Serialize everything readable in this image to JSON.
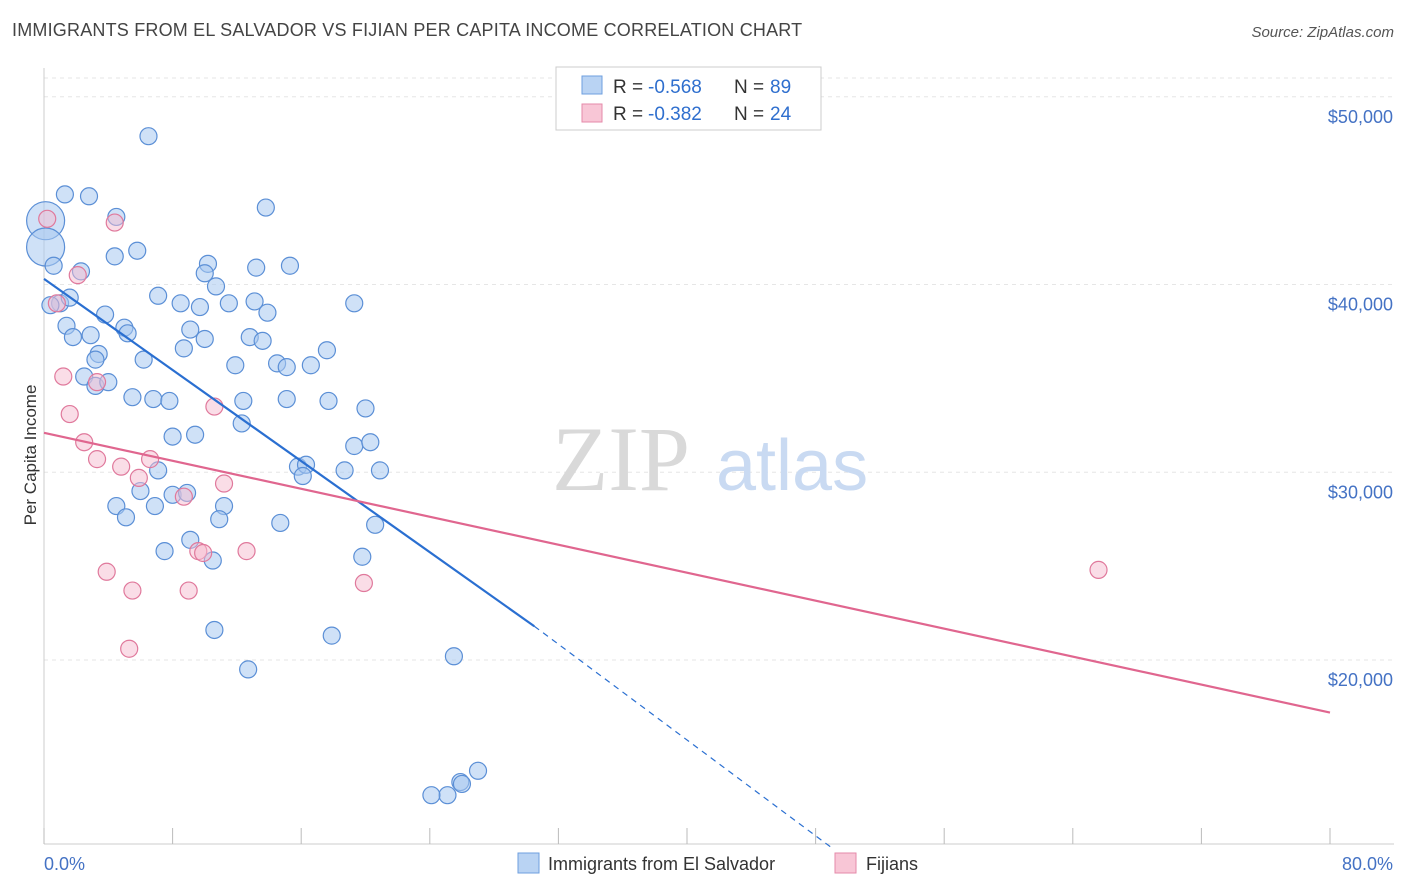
{
  "title": "IMMIGRANTS FROM EL SALVADOR VS FIJIAN PER CAPITA INCOME CORRELATION CHART",
  "source": "Source: ZipAtlas.com",
  "watermark": {
    "zip": "ZIP",
    "atlas": "atlas"
  },
  "chart_data": {
    "type": "scatter",
    "ylabel": "Per Capita Income",
    "xlim": [
      0,
      80
    ],
    "ylim": [
      10000,
      51500
    ],
    "x_tick_labels": [
      "0.0%",
      "80.0%"
    ],
    "y_ticks": [
      20000,
      30000,
      40000,
      50000
    ],
    "y_tick_labels": [
      "$20,000",
      "$30,000",
      "$40,000",
      "$50,000"
    ],
    "grid": true,
    "legend": {
      "position": "top-center",
      "entries": [
        {
          "r_label": "R = ",
          "r_value": "-0.568",
          "n_label": "N = ",
          "n_value": "89"
        },
        {
          "r_label": "R = ",
          "r_value": "-0.382",
          "n_label": "N = ",
          "n_value": "24"
        }
      ]
    },
    "series": [
      {
        "name": "Immigrants from El Salvador",
        "color": "#a8c8f0",
        "stroke": "#5b8fd6",
        "trend_color": "#2a6fd1",
        "trend": {
          "x0": 0,
          "y0": 40300,
          "x1": 30.5,
          "y1": 21800,
          "dash_x1": 49,
          "dash_y1": 10000
        },
        "points": [
          {
            "x": 0.1,
            "y": 43400,
            "big": true
          },
          {
            "x": 0.1,
            "y": 42000,
            "big": true
          },
          {
            "x": 0.6,
            "y": 41000
          },
          {
            "x": 1.3,
            "y": 44800
          },
          {
            "x": 2.8,
            "y": 44700
          },
          {
            "x": 6.5,
            "y": 47900
          },
          {
            "x": 4.5,
            "y": 43600
          },
          {
            "x": 13.8,
            "y": 44100
          },
          {
            "x": 2.3,
            "y": 40700
          },
          {
            "x": 4.4,
            "y": 41500
          },
          {
            "x": 5.8,
            "y": 41800
          },
          {
            "x": 10.2,
            "y": 41100
          },
          {
            "x": 10.0,
            "y": 40600
          },
          {
            "x": 13.2,
            "y": 40900
          },
          {
            "x": 15.3,
            "y": 41000
          },
          {
            "x": 10.7,
            "y": 39900
          },
          {
            "x": 1.0,
            "y": 39000
          },
          {
            "x": 1.6,
            "y": 39300
          },
          {
            "x": 7.1,
            "y": 39400
          },
          {
            "x": 8.5,
            "y": 39000
          },
          {
            "x": 9.7,
            "y": 38800
          },
          {
            "x": 11.5,
            "y": 39000
          },
          {
            "x": 13.1,
            "y": 39100
          },
          {
            "x": 19.3,
            "y": 39000
          },
          {
            "x": 3.8,
            "y": 38400
          },
          {
            "x": 13.9,
            "y": 38500
          },
          {
            "x": 1.4,
            "y": 37800
          },
          {
            "x": 1.8,
            "y": 37200
          },
          {
            "x": 2.9,
            "y": 37300
          },
          {
            "x": 5.0,
            "y": 37700
          },
          {
            "x": 5.2,
            "y": 37400
          },
          {
            "x": 9.1,
            "y": 37600
          },
          {
            "x": 10.0,
            "y": 37100
          },
          {
            "x": 12.8,
            "y": 37200
          },
          {
            "x": 13.6,
            "y": 37000
          },
          {
            "x": 8.7,
            "y": 36600
          },
          {
            "x": 3.4,
            "y": 36300
          },
          {
            "x": 3.2,
            "y": 36000
          },
          {
            "x": 6.2,
            "y": 36000
          },
          {
            "x": 11.9,
            "y": 35700
          },
          {
            "x": 14.5,
            "y": 35800
          },
          {
            "x": 15.1,
            "y": 35600
          },
          {
            "x": 16.6,
            "y": 35700
          },
          {
            "x": 17.6,
            "y": 36500
          },
          {
            "x": 2.5,
            "y": 35100
          },
          {
            "x": 3.2,
            "y": 34600
          },
          {
            "x": 4.0,
            "y": 34800
          },
          {
            "x": 5.5,
            "y": 34000
          },
          {
            "x": 6.8,
            "y": 33900
          },
          {
            "x": 7.8,
            "y": 33800
          },
          {
            "x": 12.4,
            "y": 33800
          },
          {
            "x": 15.1,
            "y": 33900
          },
          {
            "x": 17.7,
            "y": 33800
          },
          {
            "x": 20.0,
            "y": 33400
          },
          {
            "x": 12.3,
            "y": 32600
          },
          {
            "x": 8.0,
            "y": 31900
          },
          {
            "x": 9.4,
            "y": 32000
          },
          {
            "x": 19.3,
            "y": 31400
          },
          {
            "x": 20.3,
            "y": 31600
          },
          {
            "x": 7.1,
            "y": 30100
          },
          {
            "x": 15.8,
            "y": 30300
          },
          {
            "x": 16.3,
            "y": 30400
          },
          {
            "x": 16.1,
            "y": 29800
          },
          {
            "x": 18.7,
            "y": 30100
          },
          {
            "x": 20.9,
            "y": 30100
          },
          {
            "x": 6.0,
            "y": 29000
          },
          {
            "x": 8.0,
            "y": 28800
          },
          {
            "x": 8.9,
            "y": 28900
          },
          {
            "x": 4.5,
            "y": 28200
          },
          {
            "x": 6.9,
            "y": 28200
          },
          {
            "x": 11.2,
            "y": 28200
          },
          {
            "x": 5.1,
            "y": 27600
          },
          {
            "x": 10.9,
            "y": 27500
          },
          {
            "x": 14.7,
            "y": 27300
          },
          {
            "x": 20.6,
            "y": 27200
          },
          {
            "x": 9.1,
            "y": 26400
          },
          {
            "x": 7.5,
            "y": 25800
          },
          {
            "x": 10.5,
            "y": 25300
          },
          {
            "x": 19.8,
            "y": 25500
          },
          {
            "x": 10.6,
            "y": 21600
          },
          {
            "x": 17.9,
            "y": 21300
          },
          {
            "x": 12.7,
            "y": 19500
          },
          {
            "x": 25.5,
            "y": 20200
          },
          {
            "x": 25.9,
            "y": 13500
          },
          {
            "x": 25.1,
            "y": 12800
          },
          {
            "x": 26.0,
            "y": 13400
          },
          {
            "x": 27.0,
            "y": 14100
          },
          {
            "x": 24.1,
            "y": 12800
          },
          {
            "x": 0.4,
            "y": 38900
          }
        ]
      },
      {
        "name": "Fijians",
        "color": "#f6bcd0",
        "stroke": "#e0799c",
        "trend_color": "#e0668f",
        "trend": {
          "x0": 0,
          "y0": 32100,
          "x1": 80,
          "y1": 17200
        },
        "points": [
          {
            "x": 0.2,
            "y": 43500
          },
          {
            "x": 4.4,
            "y": 43300
          },
          {
            "x": 2.1,
            "y": 40500
          },
          {
            "x": 0.8,
            "y": 39000
          },
          {
            "x": 1.2,
            "y": 35100
          },
          {
            "x": 3.3,
            "y": 34800
          },
          {
            "x": 1.6,
            "y": 33100
          },
          {
            "x": 10.6,
            "y": 33500
          },
          {
            "x": 2.5,
            "y": 31600
          },
          {
            "x": 3.3,
            "y": 30700
          },
          {
            "x": 6.6,
            "y": 30700
          },
          {
            "x": 4.8,
            "y": 30300
          },
          {
            "x": 5.9,
            "y": 29700
          },
          {
            "x": 11.2,
            "y": 29400
          },
          {
            "x": 8.7,
            "y": 28700
          },
          {
            "x": 9.6,
            "y": 25800
          },
          {
            "x": 9.9,
            "y": 25700
          },
          {
            "x": 12.6,
            "y": 25800
          },
          {
            "x": 3.9,
            "y": 24700
          },
          {
            "x": 5.5,
            "y": 23700
          },
          {
            "x": 9.0,
            "y": 23700
          },
          {
            "x": 19.9,
            "y": 24100
          },
          {
            "x": 5.3,
            "y": 20600
          },
          {
            "x": 65.6,
            "y": 24800
          }
        ]
      }
    ]
  }
}
